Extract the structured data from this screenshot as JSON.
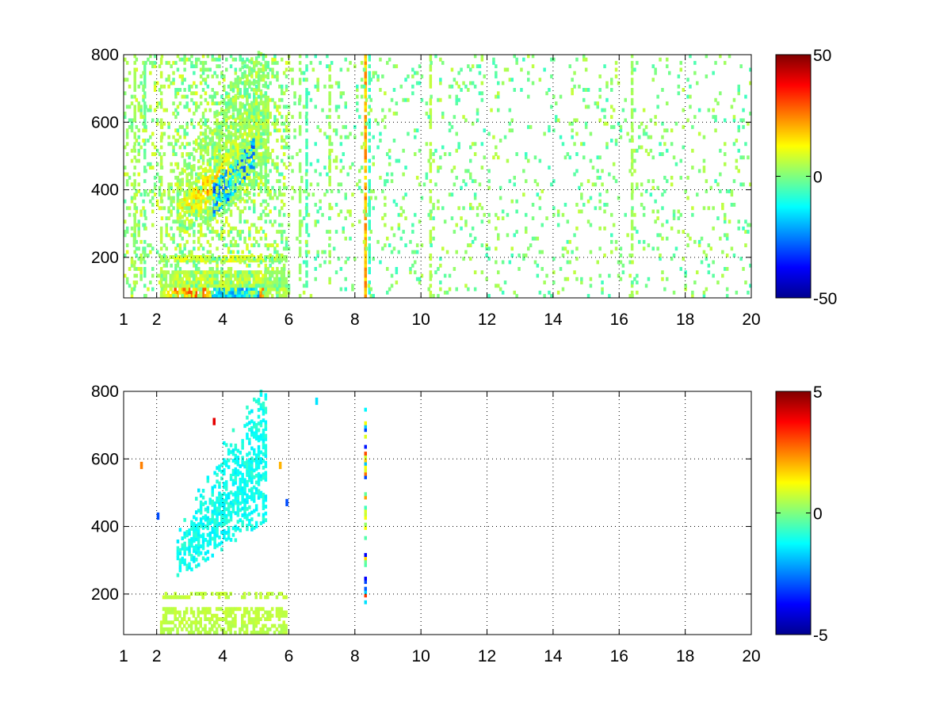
{
  "chart_data": [
    {
      "type": "heatmap",
      "title": "",
      "xlabel": "",
      "ylabel": "",
      "xlim": [
        1,
        20
      ],
      "ylim": [
        80,
        800
      ],
      "xticks": [
        1,
        2,
        4,
        6,
        8,
        10,
        12,
        14,
        16,
        18,
        20
      ],
      "yticks": [
        200,
        400,
        600,
        800
      ],
      "grid": true,
      "colormap": "jet",
      "clim": [
        -50,
        50
      ],
      "colorbar": {
        "ticks": [
          50,
          0,
          -50
        ],
        "placement": "right"
      },
      "features": {
        "bottom_band_rows": [
          [
            80,
            110,
            28
          ],
          [
            110,
            160,
            10
          ],
          [
            185,
            205,
            12
          ]
        ],
        "main_blob": {
          "x_range": [
            2.6,
            5.4
          ],
          "center_line": [
            [
              2.6,
              330,
              12
            ],
            [
              3.4,
              390,
              22
            ],
            [
              4.0,
              450,
              14
            ],
            [
              4.6,
              520,
              8
            ],
            [
              5.2,
              600,
              6
            ]
          ]
        },
        "blue_streak": {
          "x_range": [
            3.7,
            4.9
          ],
          "values": -28
        },
        "vertical_stripes": [
          [
            1.3,
            4
          ],
          [
            1.6,
            -3
          ],
          [
            2.1,
            6
          ],
          [
            6.3,
            3
          ],
          [
            6.5,
            -6
          ],
          [
            7.2,
            5
          ],
          [
            8.28,
            22
          ],
          [
            8.4,
            -8
          ],
          [
            10.25,
            6
          ],
          [
            16.35,
            4
          ]
        ],
        "scatter_density": 0.08,
        "scatter_x_range": [
          6,
          20
        ]
      }
    },
    {
      "type": "heatmap",
      "title": "",
      "xlabel": "",
      "ylabel": "",
      "xlim": [
        1,
        20
      ],
      "ylim": [
        80,
        800
      ],
      "xticks": [
        1,
        2,
        4,
        6,
        8,
        10,
        12,
        14,
        16,
        18,
        20
      ],
      "yticks": [
        200,
        400,
        600,
        800
      ],
      "grid": true,
      "colormap": "jet",
      "clim": [
        -5,
        5
      ],
      "colorbar": {
        "ticks": [
          5,
          0,
          -5
        ],
        "placement": "right"
      },
      "features": {
        "bottom_band_rows": [
          [
            80,
            110,
            0.6
          ],
          [
            110,
            160,
            0.7
          ],
          [
            185,
            205,
            0.7
          ]
        ],
        "main_blob": {
          "x_range": [
            2.6,
            5.3
          ],
          "values": -1.2
        },
        "vertical_stripes": [
          [
            8.28,
            0.8
          ]
        ],
        "sparse_points": [
          [
            3.7,
            700,
            4
          ],
          [
            6.8,
            760,
            -1.5
          ],
          [
            5.7,
            570,
            2
          ],
          [
            5.9,
            460,
            -3
          ],
          [
            1.5,
            570,
            2.5
          ],
          [
            2.0,
            420,
            -3
          ]
        ]
      }
    }
  ]
}
